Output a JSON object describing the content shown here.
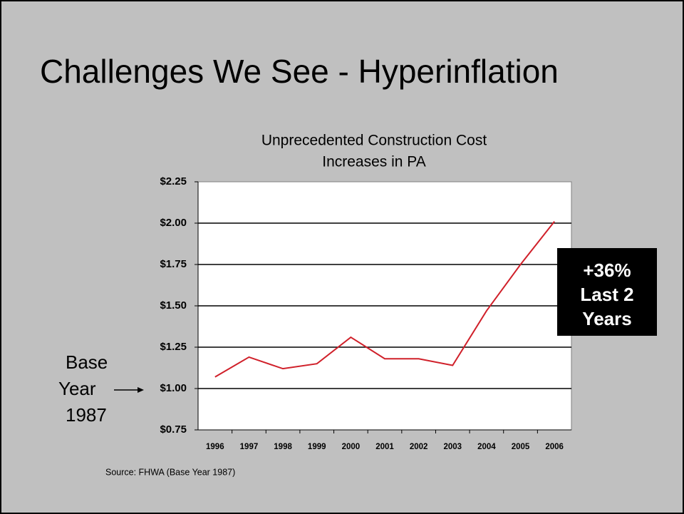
{
  "slide_title": "Challenges We See - Hyperinflation",
  "chart_data": {
    "type": "line",
    "title": [
      "Unprecedented Construction Cost",
      "Increases in PA"
    ],
    "categories": [
      "1996",
      "1997",
      "1998",
      "1999",
      "2000",
      "2001",
      "2002",
      "2003",
      "2004",
      "2005",
      "2006"
    ],
    "values": [
      1.07,
      1.19,
      1.12,
      1.15,
      1.31,
      1.18,
      1.18,
      1.14,
      1.47,
      1.75,
      2.01
    ],
    "color": "#d0202a",
    "ylim": [
      0.75,
      2.25
    ],
    "yticks": [
      {
        "value": 0.75,
        "label": "$0.75"
      },
      {
        "value": 1.0,
        "label": "$1.00"
      },
      {
        "value": 1.25,
        "label": "$1.25"
      },
      {
        "value": 1.5,
        "label": "$1.50"
      },
      {
        "value": 1.75,
        "label": "$1.75"
      },
      {
        "value": 2.0,
        "label": "$2.00"
      },
      {
        "value": 2.25,
        "label": "$2.25"
      }
    ],
    "grid": true,
    "annotations": [
      {
        "lines": [
          "+36%",
          "Last 2",
          "Years"
        ]
      },
      {
        "lines": [
          "Base",
          "Year",
          "1987"
        ]
      }
    ],
    "source": "Source: FHWA (Base Year 1987)"
  }
}
